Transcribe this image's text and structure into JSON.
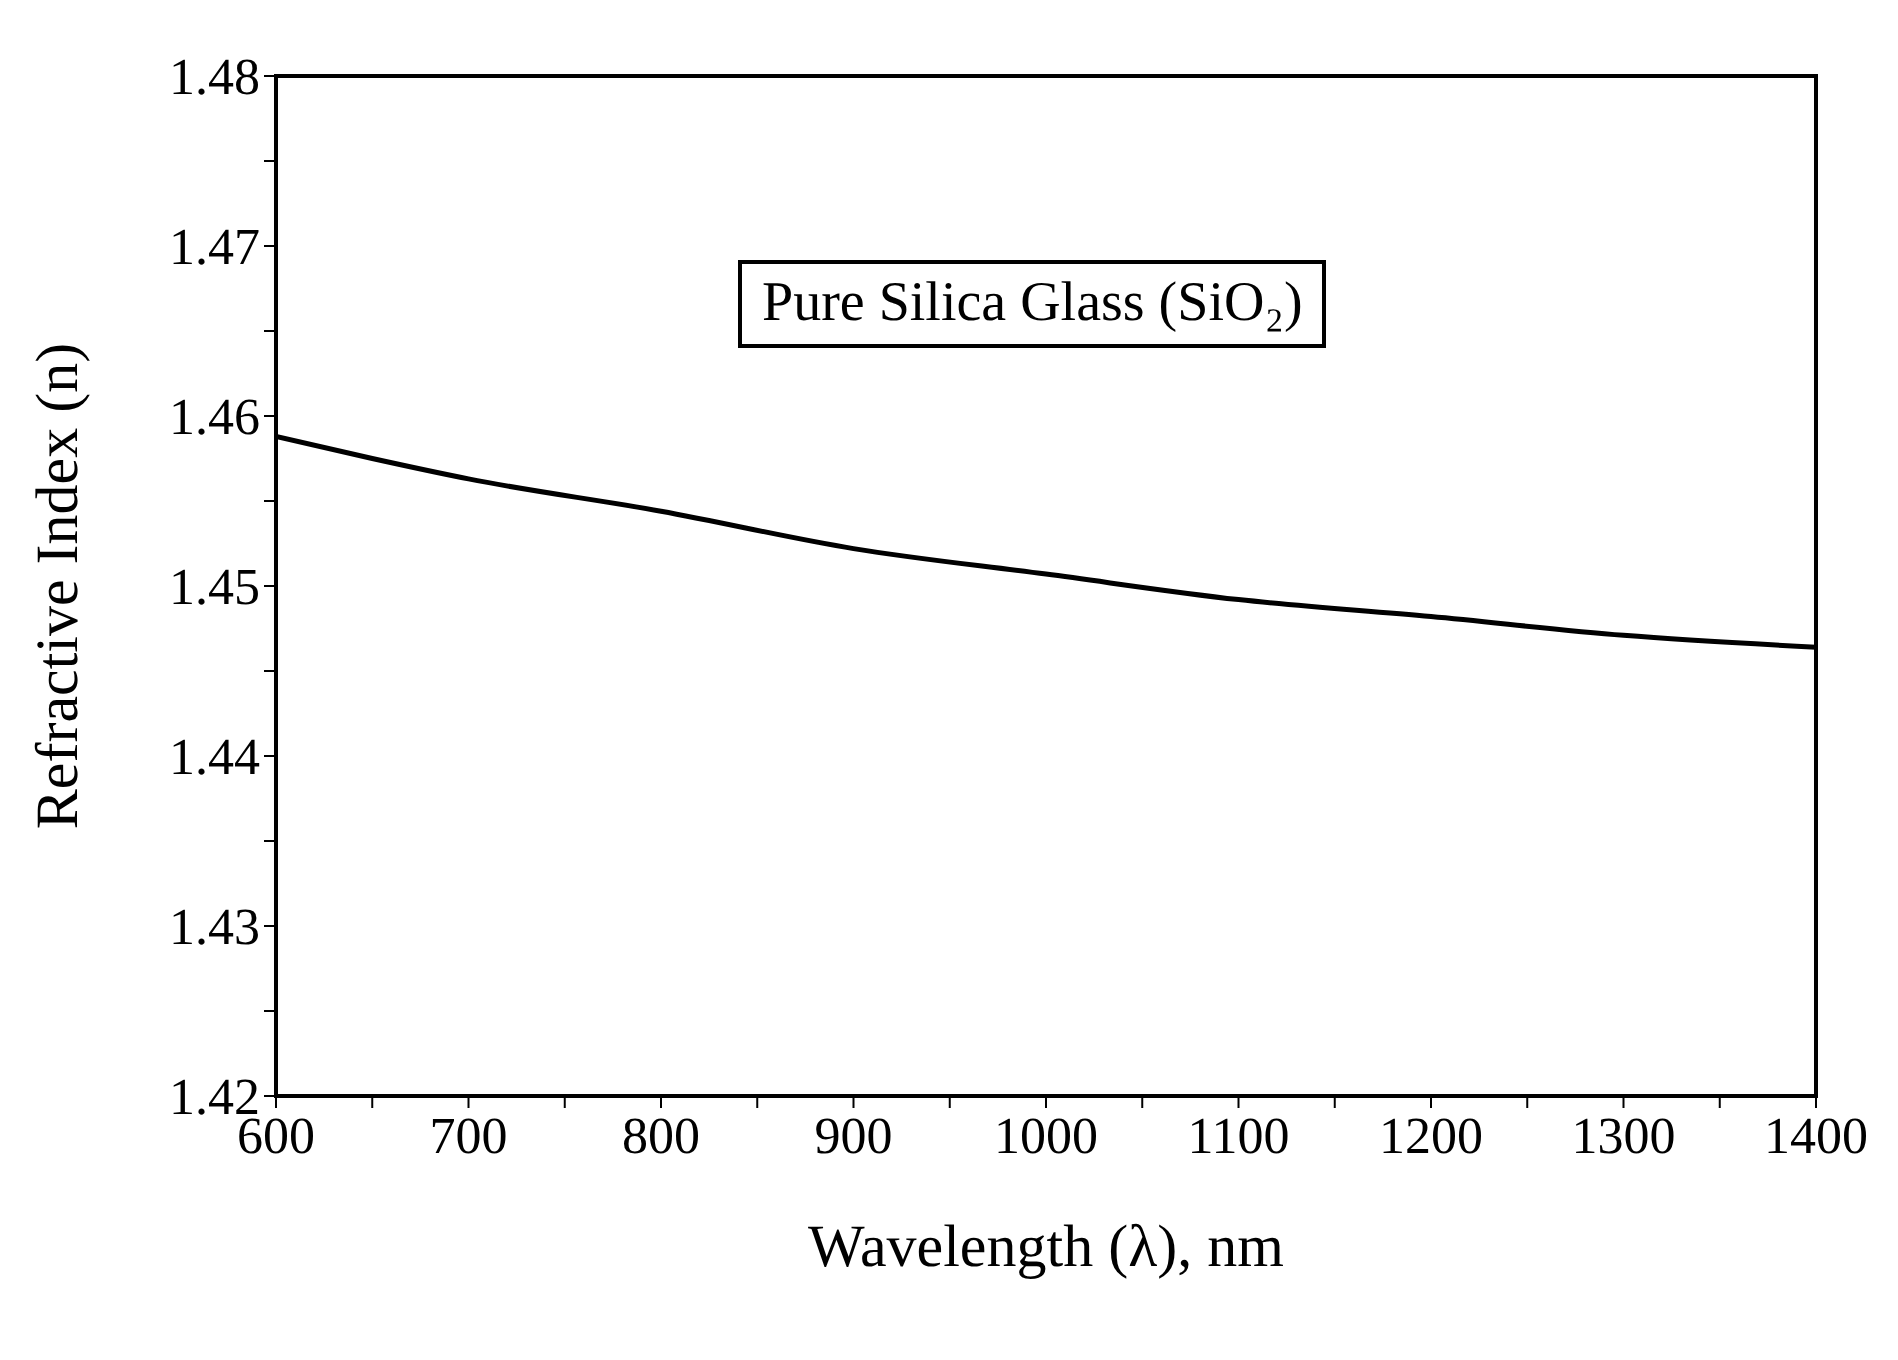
{
  "chart_data": {
    "type": "line",
    "xlabel": "Wavelength (λ), nm",
    "ylabel": "Refractive Index (n)",
    "annotations": [
      "Pure Silica Glass (SiO₂)"
    ],
    "x": [
      600,
      650,
      700,
      800,
      900,
      1000,
      1100,
      1200,
      1300,
      1400
    ],
    "series": [
      {
        "color": "#000000",
        "values": [
          1.4588,
          1.4575,
          1.4563,
          1.4544,
          1.4522,
          1.4507,
          1.4492,
          1.4482,
          1.4471,
          1.4464
        ]
      }
    ],
    "xlim": [
      600,
      1400
    ],
    "xticks": [
      600,
      {
        "value": 650,
        "label": null
      },
      700,
      {
        "value": 750,
        "label": null
      },
      800,
      {
        "value": 850,
        "label": null
      },
      900,
      {
        "value": 950,
        "label": null
      },
      1000,
      {
        "value": 1050,
        "label": null
      },
      1100,
      {
        "value": 1150,
        "label": null
      },
      1200,
      {
        "value": 1250,
        "label": null
      },
      1300,
      {
        "value": 1350,
        "label": null
      },
      1400
    ],
    "ylim": [
      1.42,
      1.48
    ],
    "yticks": [
      1.42,
      {
        "value": 1.425,
        "label": null
      },
      1.43,
      {
        "value": 1.435,
        "label": null
      },
      1.44,
      {
        "value": 1.445,
        "label": null
      },
      1.45,
      {
        "value": 1.455,
        "label": null
      },
      1.46,
      {
        "value": 1.465,
        "label": null
      },
      1.47,
      {
        "value": 1.475,
        "label": null
      },
      1.48
    ],
    "grid": false,
    "marker": "none",
    "line_style": "solid"
  }
}
